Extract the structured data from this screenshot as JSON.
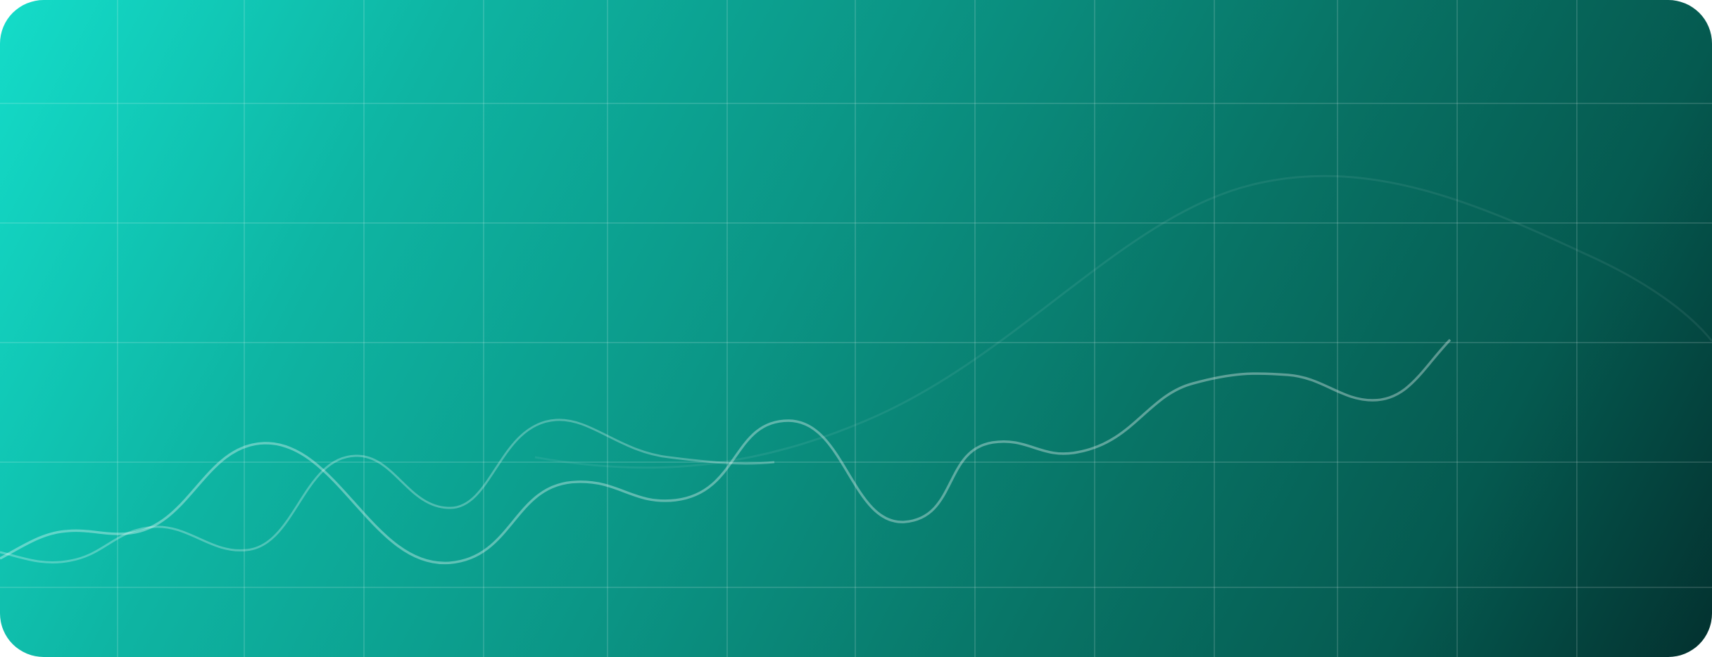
{
  "banner": {
    "kind": "decorative-wave-background"
  }
}
